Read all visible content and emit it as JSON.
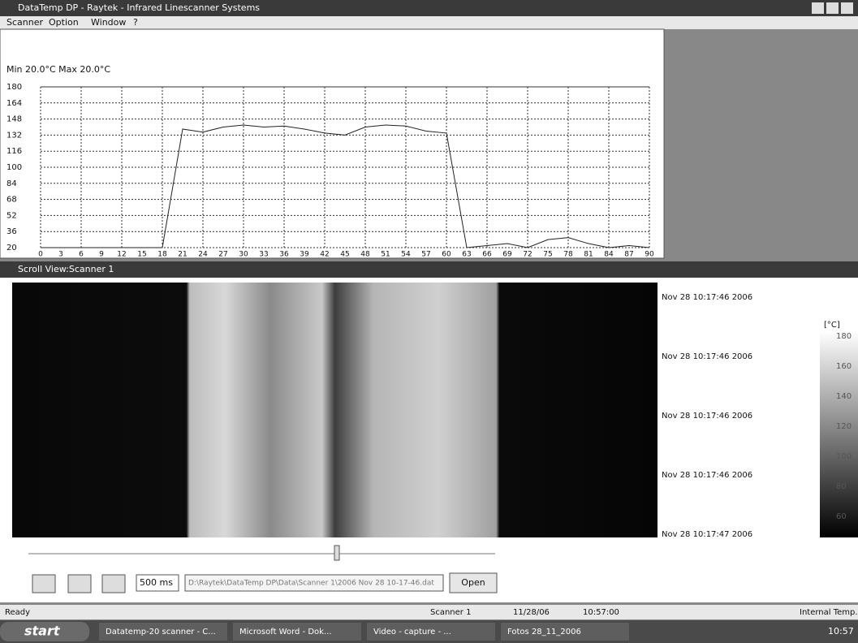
{
  "window": {
    "title": "DataTemp DP - Raytek - Infrared Linescanner Systems",
    "menu": [
      "Scanner",
      "Option",
      "Window",
      "?"
    ]
  },
  "chart_data": {
    "type": "line",
    "stats": "Min 20.0°C  Max 20.0°C",
    "x": [
      0,
      3,
      6,
      9,
      12,
      15,
      18,
      21,
      24,
      27,
      30,
      33,
      36,
      39,
      42,
      45,
      48,
      51,
      54,
      57,
      60,
      63,
      66,
      69,
      72,
      75,
      78,
      81,
      84,
      87,
      90
    ],
    "series": [
      {
        "color": "#222222",
        "values": [
          20,
          20,
          20,
          20,
          20,
          20,
          20,
          138,
          135,
          140,
          142,
          140,
          141,
          138,
          134,
          132,
          140,
          142,
          141,
          136,
          134,
          20,
          22,
          24,
          20,
          28,
          30,
          24,
          20,
          22,
          20
        ]
      }
    ],
    "xlim": [
      0,
      90
    ],
    "ylim": [
      20,
      180
    ],
    "xticks": [
      0,
      3,
      6,
      9,
      12,
      15,
      18,
      21,
      24,
      27,
      30,
      33,
      36,
      39,
      42,
      45,
      48,
      51,
      54,
      57,
      60,
      63,
      66,
      69,
      72,
      75,
      78,
      81,
      84,
      87,
      90
    ],
    "yticks": [
      20,
      36,
      52,
      68,
      84,
      100,
      116,
      132,
      148,
      164,
      180
    ],
    "grid": true
  },
  "scroll_view": {
    "title": "Scroll View:Scanner 1",
    "timestamps": [
      "Nov 28 10:17:46 2006",
      "Nov 28 10:17:46 2006",
      "Nov 28 10:17:46 2006",
      "Nov 28 10:17:46 2006",
      "Nov 28 10:17:47 2006"
    ],
    "scale_unit": "[°C]",
    "scale_labels": [
      "180",
      "160",
      "140",
      "120",
      "100",
      "80",
      "60"
    ],
    "interval": "500 ms",
    "path": "D:\\Raytek\\DataTemp DP\\Data\\Scanner 1\\2006 Nov 28 10-17-46.dat",
    "open_button": "Open"
  },
  "status_bar": [
    "Ready",
    "Scanner 1",
    "11/28/06",
    "10:57:00",
    "Internal Temp."
  ],
  "taskbar": {
    "start": "start",
    "items": [
      "Datatemp-20 scanner - C...",
      "Microsoft Word - Dok...",
      "Video - capture - ...",
      "Fotos 28_11_2006"
    ],
    "clock": "10:57"
  }
}
